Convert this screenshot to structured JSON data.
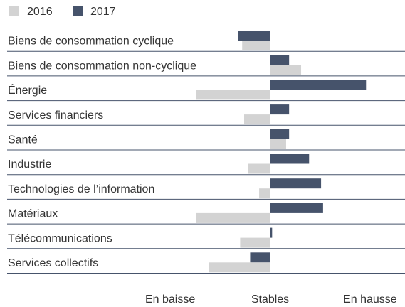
{
  "chart_data": {
    "type": "diverging-bar",
    "categories": [
      "Biens de consommation cyclique",
      "Biens de consommation non-cyclique",
      "Énergie",
      "Services financiers",
      "Santé",
      "Industrie",
      "Technologies de l’information",
      "Matériaux",
      "Télécommunications",
      "Services collectifs"
    ],
    "series": [
      {
        "name": "2016",
        "color": "#d3d3d3",
        "values": [
          -0.28,
          0.31,
          -0.74,
          -0.26,
          0.16,
          -0.22,
          -0.11,
          -0.74,
          -0.3,
          -0.61
        ]
      },
      {
        "name": "2017",
        "color": "#46536b",
        "values": [
          -0.32,
          0.19,
          0.96,
          0.19,
          0.19,
          0.39,
          0.51,
          0.53,
          0.02,
          -0.2
        ]
      }
    ],
    "xlim": [
      -1.35,
      1.35
    ],
    "xticks": [
      {
        "value": -1,
        "label": "En baisse"
      },
      {
        "value": 0,
        "label": "Stables"
      },
      {
        "value": 1,
        "label": "En hausse"
      }
    ],
    "legend": "top-left"
  }
}
